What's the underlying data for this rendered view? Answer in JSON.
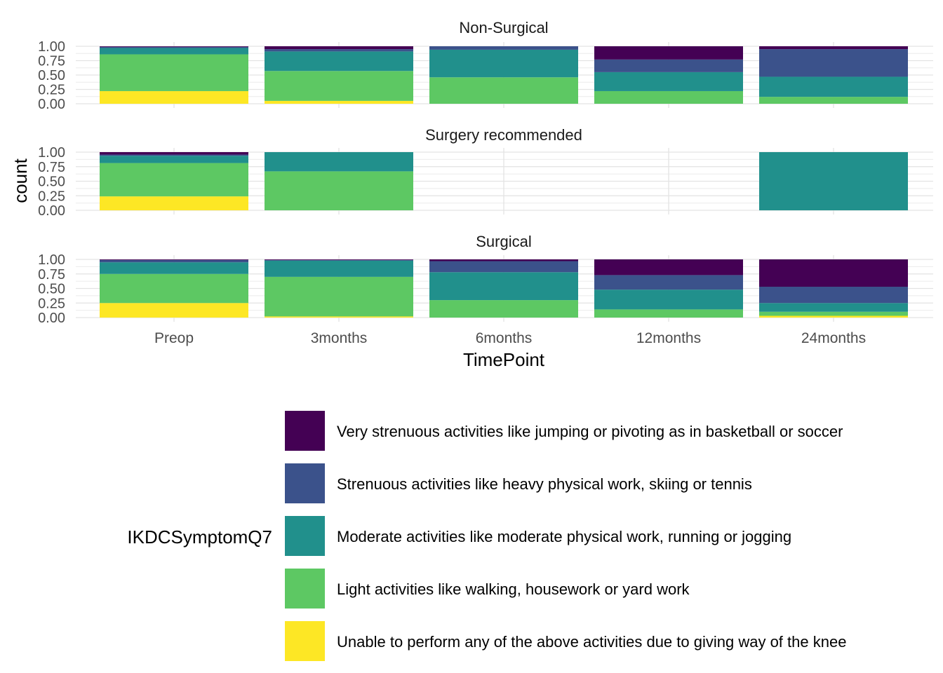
{
  "chart_data": {
    "type": "bar",
    "stacked": true,
    "position": "fill",
    "facets": [
      "Non-Surgical",
      "Surgery recommended",
      "Surgical"
    ],
    "categories": [
      "Preop",
      "3months",
      "6months",
      "12months",
      "24months"
    ],
    "xlabel": "TimePoint",
    "ylabel": "count",
    "ylim": [
      0,
      1
    ],
    "yticks": [
      "0.00",
      "0.25",
      "0.50",
      "0.75",
      "1.00"
    ],
    "legend": {
      "title": "IKDCSymptomQ7",
      "placement": "bottom"
    },
    "series": [
      {
        "name": "Very strenuous activities like jumping or pivoting as in basketball or soccer",
        "color": "#440154"
      },
      {
        "name": "Strenuous activities like heavy physical work, skiing or tennis",
        "color": "#3b528b"
      },
      {
        "name": "Moderate activities like moderate physical work, running or jogging",
        "color": "#21908c"
      },
      {
        "name": "Light activities like walking, housework or yard work",
        "color": "#5dc863"
      },
      {
        "name": "Unable to perform any of the above activities due to giving way of the knee",
        "color": "#fde725"
      }
    ],
    "panels": [
      {
        "facet": "Non-Surgical",
        "bars": [
          {
            "category": "Preop",
            "values": [
              0.01,
              0.02,
              0.11,
              0.64,
              0.22
            ]
          },
          {
            "category": "3months",
            "values": [
              0.05,
              0.04,
              0.34,
              0.52,
              0.05
            ]
          },
          {
            "category": "6months",
            "values": [
              0.0,
              0.06,
              0.48,
              0.46,
              0.0
            ]
          },
          {
            "category": "12months",
            "values": [
              0.23,
              0.22,
              0.33,
              0.22,
              0.0
            ]
          },
          {
            "category": "24months",
            "values": [
              0.05,
              0.48,
              0.35,
              0.12,
              0.0
            ]
          }
        ]
      },
      {
        "facet": "Surgery recommended",
        "bars": [
          {
            "category": "Preop",
            "values": [
              0.04,
              0.02,
              0.12,
              0.55,
              0.23
            ]
          },
          {
            "category": "3months",
            "values": [
              0.0,
              0.0,
              0.33,
              0.67,
              0.0
            ]
          },
          {
            "category": "24months",
            "values": [
              0.0,
              0.0,
              1.0,
              0.0,
              0.0
            ]
          }
        ]
      },
      {
        "facet": "Surgical",
        "bars": [
          {
            "category": "Preop",
            "values": [
              0.01,
              0.04,
              0.2,
              0.5,
              0.25
            ]
          },
          {
            "category": "3months",
            "values": [
              0.01,
              0.01,
              0.28,
              0.68,
              0.02
            ]
          },
          {
            "category": "6months",
            "values": [
              0.03,
              0.19,
              0.48,
              0.3,
              0.0
            ]
          },
          {
            "category": "12months",
            "values": [
              0.27,
              0.25,
              0.34,
              0.14,
              0.0
            ]
          },
          {
            "category": "24months",
            "values": [
              0.47,
              0.28,
              0.15,
              0.07,
              0.03
            ]
          }
        ]
      }
    ]
  }
}
